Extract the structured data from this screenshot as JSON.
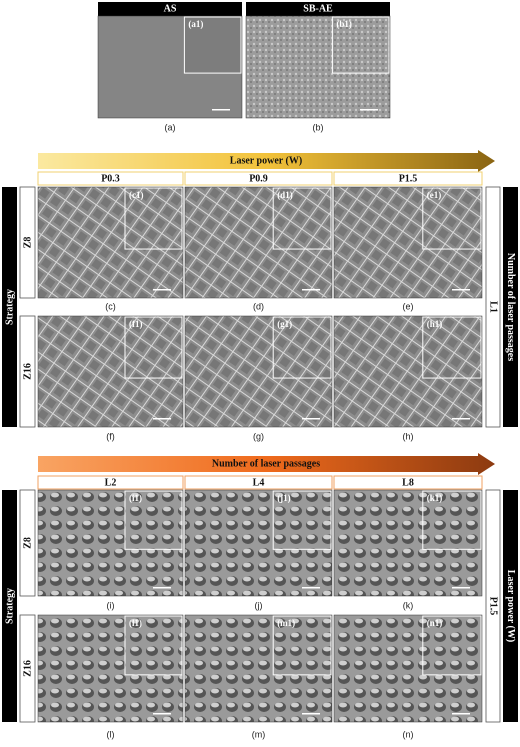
{
  "top": {
    "panels": [
      {
        "header": "AS",
        "inset": "(a1)",
        "label": "(a)"
      },
      {
        "header": "SB-AE",
        "inset": "(b1)",
        "label": "(b)"
      }
    ]
  },
  "sections": [
    {
      "arrow": "Laser power (W)",
      "columns": [
        "P0.3",
        "P0.9",
        "P1.5"
      ],
      "side_left": "Strategy",
      "rows": [
        "Z8",
        "Z16"
      ],
      "side_right_value": "L1",
      "side_right_title": "Number of laser passages",
      "insets": [
        [
          "(c1)",
          "(d1)",
          "(e1)"
        ],
        [
          "(f1)",
          "(g1)",
          "(h1)"
        ]
      ],
      "labels": [
        [
          "(c)",
          "(d)",
          "(e)"
        ],
        [
          "(f)",
          "(g)",
          "(h)"
        ]
      ]
    },
    {
      "arrow": "Number of laser passages",
      "columns": [
        "L2",
        "L4",
        "L8"
      ],
      "side_left": "Strategy",
      "rows": [
        "Z8",
        "Z16"
      ],
      "side_right_value": "P1.5",
      "side_right_title": "Laser power (W)",
      "insets": [
        [
          "(i1)",
          "(j1)",
          "(k1)"
        ],
        [
          "(l1)",
          "(m1)",
          "(n1)"
        ]
      ],
      "labels": [
        [
          "(i)",
          "(j)",
          "(k)"
        ],
        [
          "(l)",
          "(m)",
          "(n)"
        ]
      ]
    }
  ]
}
